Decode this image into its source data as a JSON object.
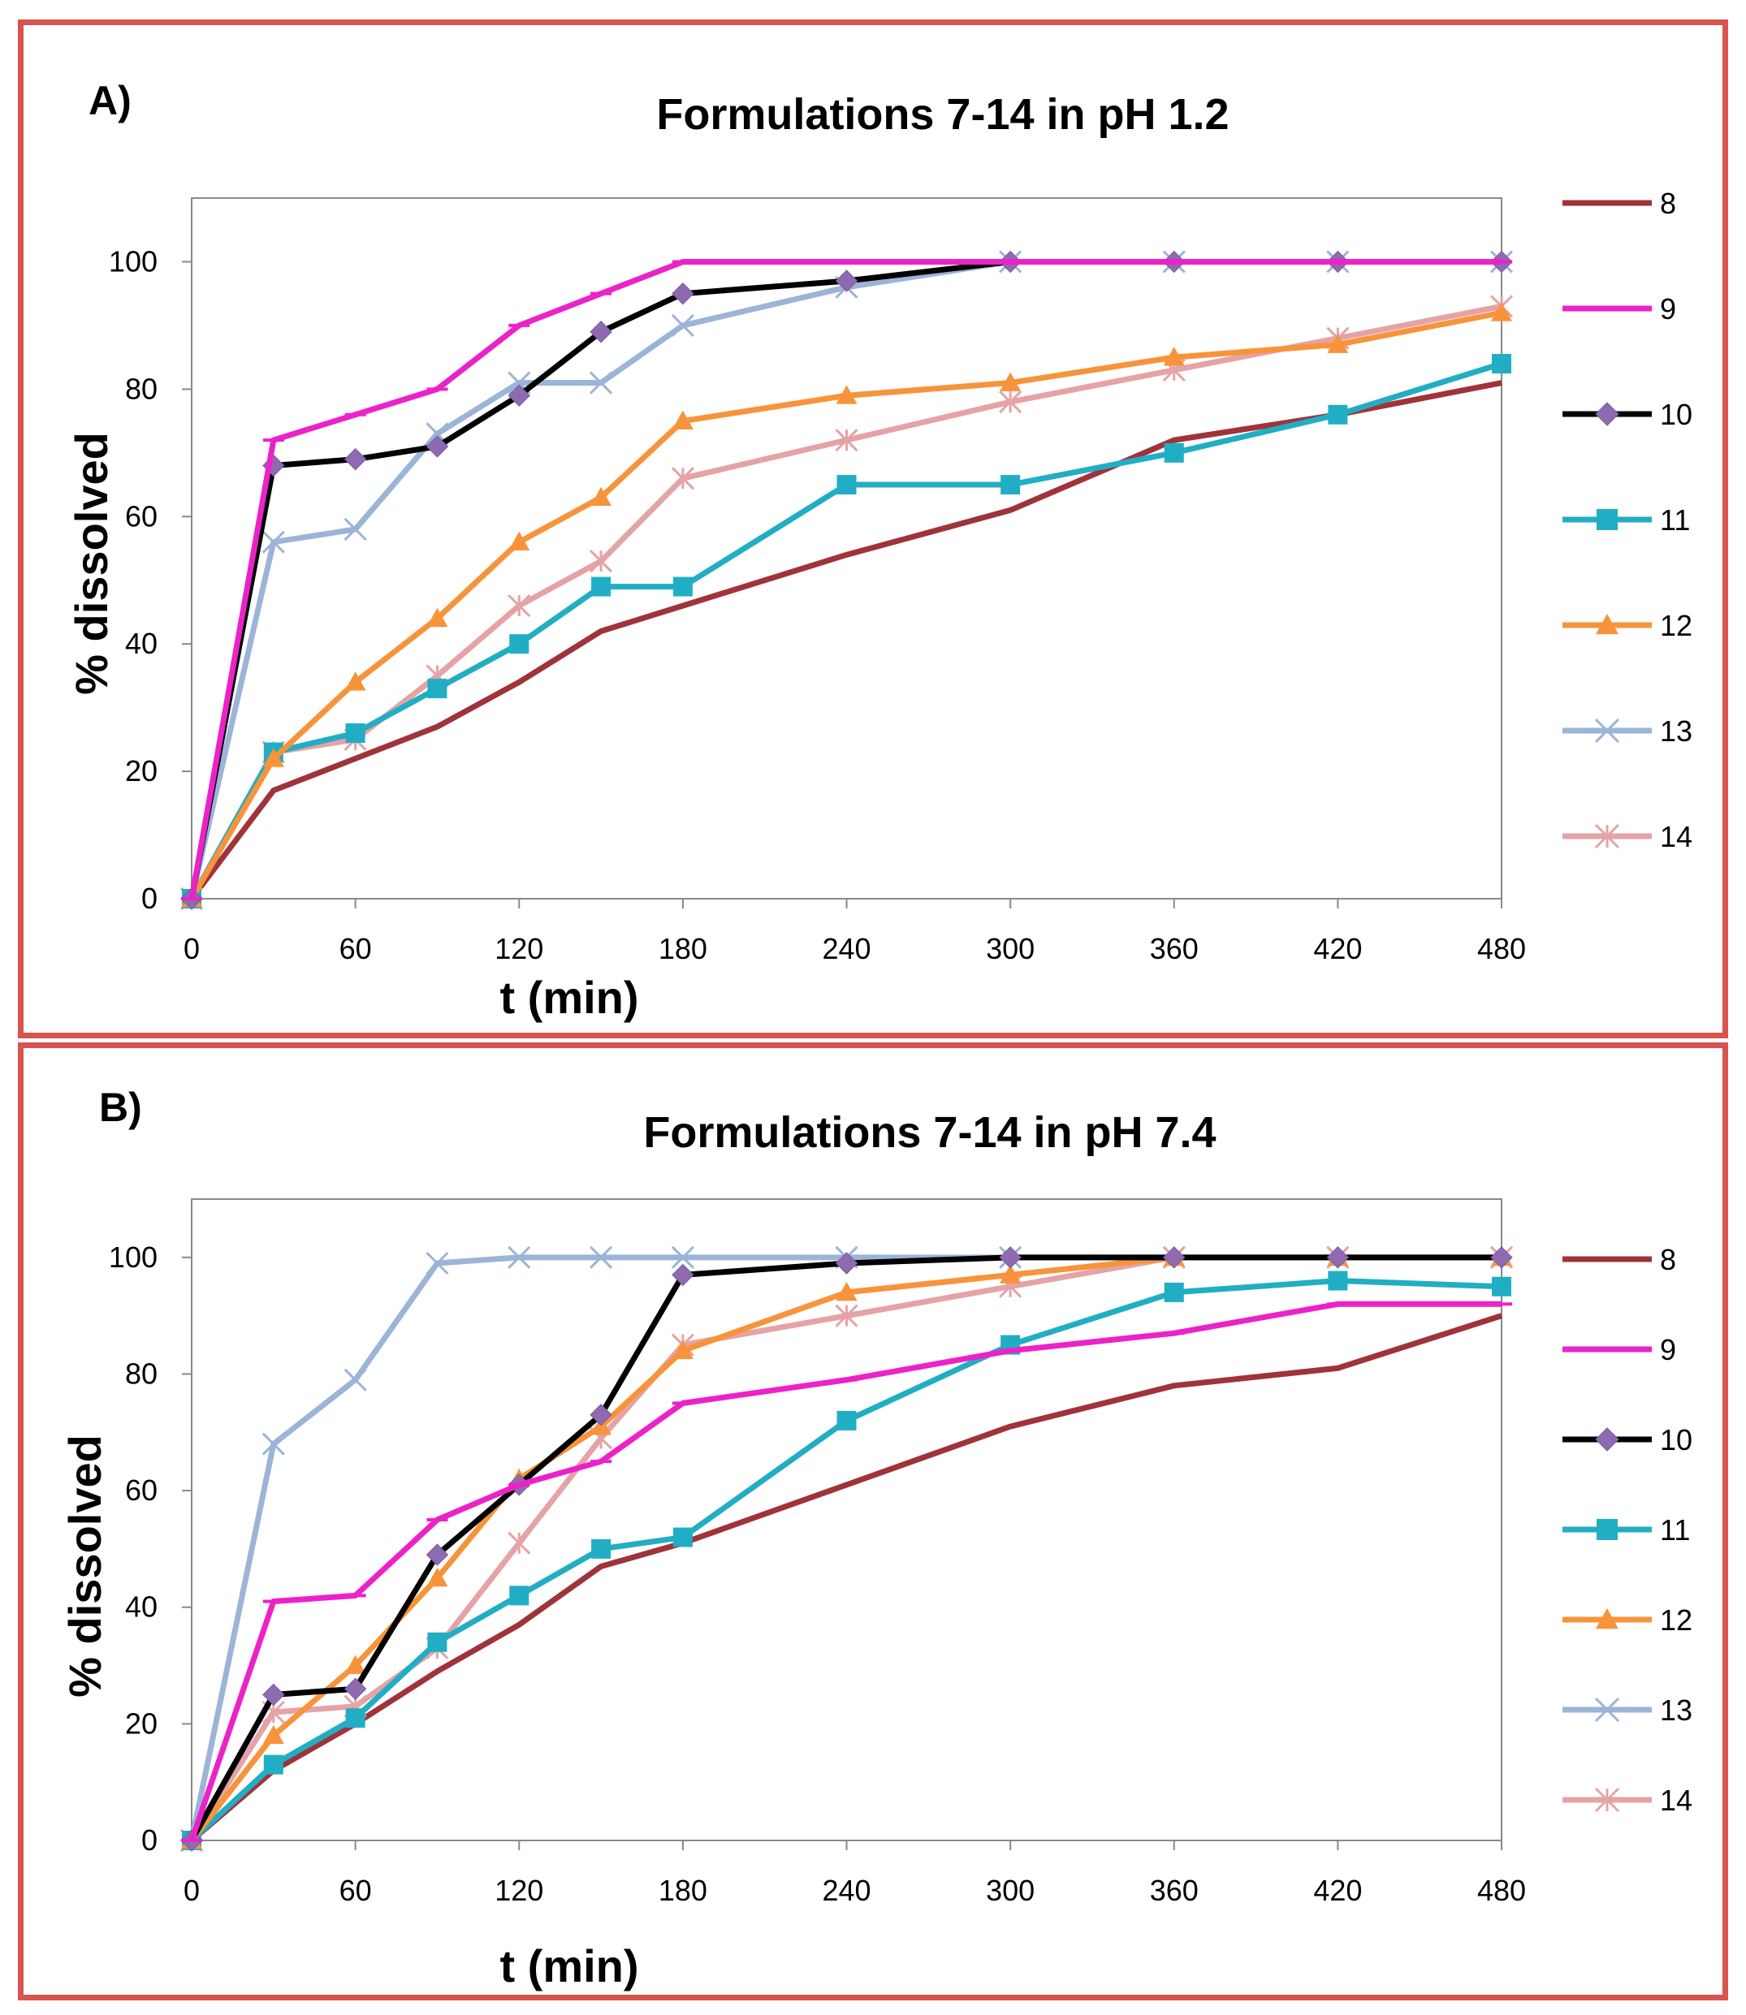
{
  "chart_data": [
    {
      "type": "line",
      "panel_label": "A)",
      "title": "Formulations 7-14 in pH 1.2",
      "xlabel": "t (min)",
      "ylabel": "% dissolved",
      "x": [
        0,
        30,
        60,
        90,
        120,
        150,
        180,
        240,
        300,
        360,
        420,
        480
      ],
      "xticks": [
        0,
        60,
        120,
        180,
        240,
        300,
        360,
        420,
        480
      ],
      "yticks": [
        0,
        20,
        40,
        60,
        80,
        100
      ],
      "xlim": [
        0,
        480
      ],
      "ylim": [
        0,
        110
      ],
      "legend_position": "right",
      "series": [
        {
          "name": "8",
          "color": "#a0333a",
          "marker": "none",
          "values": [
            0,
            17,
            22,
            27,
            34,
            42,
            46,
            54,
            61,
            72,
            76,
            81
          ]
        },
        {
          "name": "9",
          "color": "#ec22c9",
          "marker": "dash",
          "values": [
            0,
            72,
            76,
            80,
            90,
            95,
            100,
            100,
            100,
            100,
            100,
            100
          ]
        },
        {
          "name": "10",
          "color": "#000000",
          "marker": "diamond",
          "values": [
            0,
            68,
            69,
            71,
            79,
            89,
            95,
            97,
            100,
            100,
            100,
            100
          ]
        },
        {
          "name": "11",
          "color": "#21aec4",
          "marker": "square",
          "values": [
            0,
            23,
            26,
            33,
            40,
            49,
            49,
            65,
            65,
            70,
            76,
            84
          ]
        },
        {
          "name": "12",
          "color": "#f7943b",
          "marker": "triangle",
          "values": [
            0,
            22,
            34,
            44,
            56,
            63,
            75,
            79,
            81,
            85,
            87,
            92
          ]
        },
        {
          "name": "13",
          "color": "#9bb4d7",
          "marker": "x",
          "values": [
            0,
            56,
            58,
            73,
            81,
            81,
            90,
            96,
            100,
            100,
            100,
            100
          ]
        },
        {
          "name": "14",
          "color": "#e5a3a6",
          "marker": "star",
          "values": [
            0,
            23,
            25,
            35,
            46,
            53,
            66,
            72,
            78,
            83,
            88,
            93
          ]
        }
      ]
    },
    {
      "type": "line",
      "panel_label": "B)",
      "title": "Formulations  7-14 in pH 7.4",
      "xlabel": "t (min)",
      "ylabel": "% dissolved",
      "x": [
        0,
        30,
        60,
        90,
        120,
        150,
        180,
        240,
        300,
        360,
        420,
        480
      ],
      "xticks": [
        0,
        60,
        120,
        180,
        240,
        300,
        360,
        420,
        480
      ],
      "yticks": [
        0,
        20,
        40,
        60,
        80,
        100
      ],
      "xlim": [
        0,
        480
      ],
      "ylim": [
        0,
        110
      ],
      "legend_position": "right",
      "series": [
        {
          "name": "8",
          "color": "#a0333a",
          "marker": "none",
          "values": [
            0,
            12,
            20,
            29,
            37,
            47,
            51,
            61,
            71,
            78,
            81,
            90
          ]
        },
        {
          "name": "9",
          "color": "#ec22c9",
          "marker": "dash",
          "values": [
            0,
            41,
            42,
            55,
            61,
            65,
            75,
            79,
            84,
            87,
            92,
            92
          ]
        },
        {
          "name": "10",
          "color": "#000000",
          "marker": "diamond",
          "values": [
            0,
            25,
            26,
            49,
            61,
            73,
            97,
            99,
            100,
            100,
            100,
            100
          ]
        },
        {
          "name": "11",
          "color": "#21aec4",
          "marker": "square",
          "values": [
            0,
            13,
            21,
            34,
            42,
            50,
            52,
            72,
            85,
            94,
            96,
            95
          ]
        },
        {
          "name": "12",
          "color": "#f7943b",
          "marker": "triangle",
          "values": [
            0,
            18,
            30,
            45,
            62,
            71,
            84,
            94,
            97,
            100,
            100,
            100
          ]
        },
        {
          "name": "13",
          "color": "#9bb4d7",
          "marker": "x",
          "values": [
            0,
            68,
            79,
            99,
            100,
            100,
            100,
            100,
            100,
            100,
            100,
            100
          ]
        },
        {
          "name": "14",
          "color": "#e5a3a6",
          "marker": "star",
          "values": [
            0,
            22,
            23,
            33,
            51,
            69,
            85,
            90,
            95,
            100,
            100,
            100
          ]
        }
      ]
    }
  ]
}
